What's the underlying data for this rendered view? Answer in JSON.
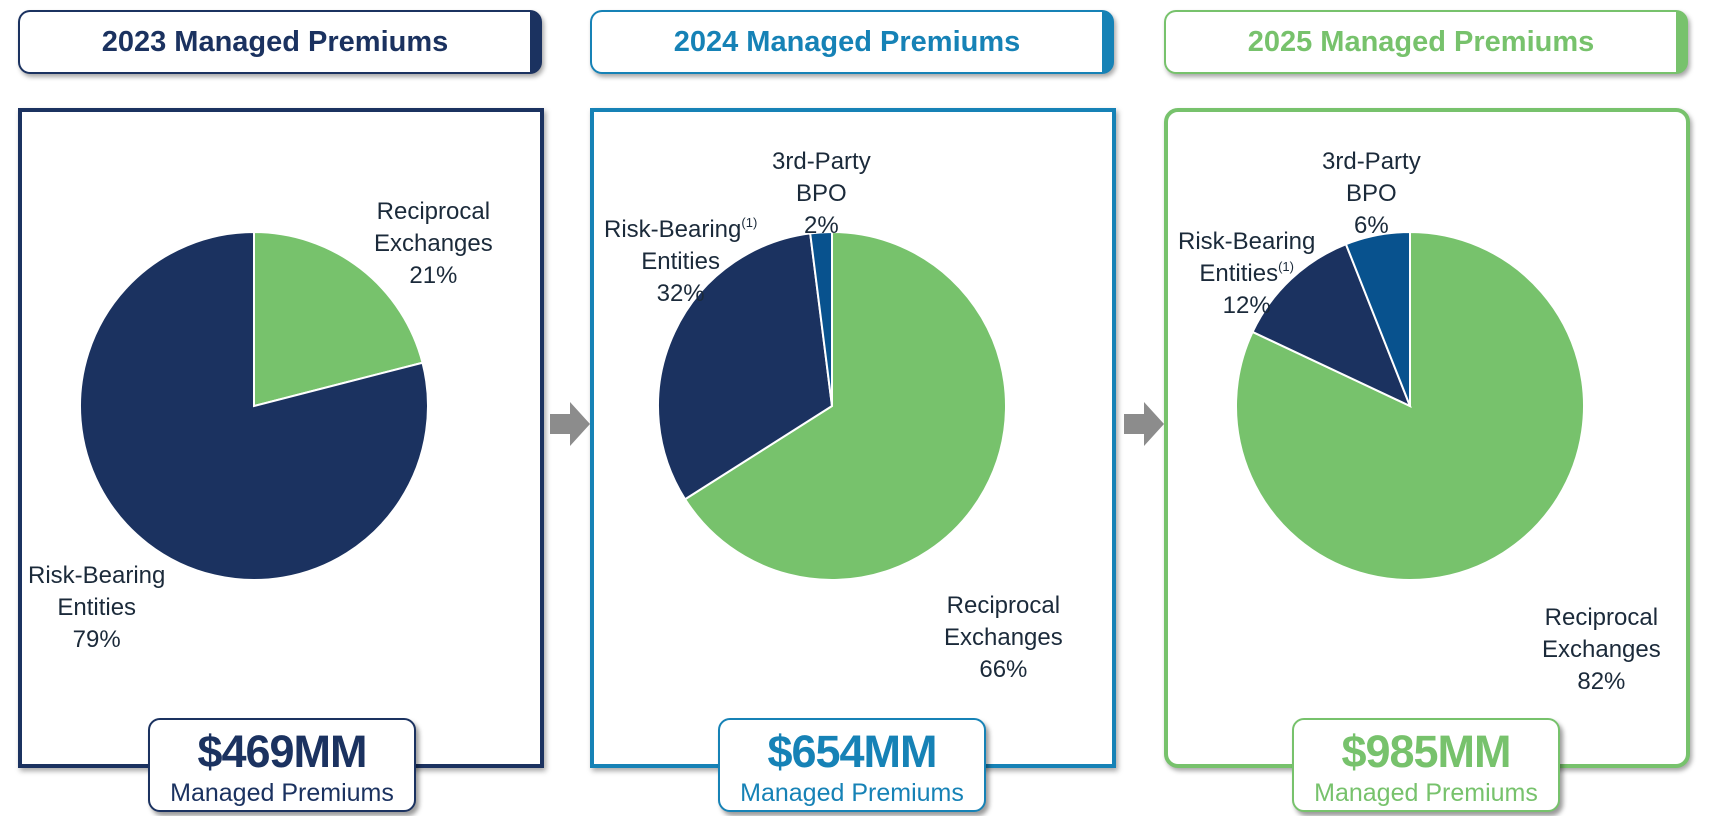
{
  "chart_data": [
    {
      "type": "pie",
      "title": "2023 Managed Premiums",
      "total": "$469MM",
      "total_caption": "Managed Premiums",
      "accent": "#1b3260",
      "slices": [
        {
          "line1": "Reciprocal",
          "line2": "Exchanges",
          "note": "",
          "pct_label": "21%",
          "value": 21,
          "color": "#77c26c"
        },
        {
          "line1": "Risk-Bearing",
          "line2": "Entities",
          "note": "",
          "pct_label": "79%",
          "value": 79,
          "color": "#1b3260"
        }
      ]
    },
    {
      "type": "pie",
      "title": "2024 Managed Premiums",
      "total": "$654MM",
      "total_caption": "Managed Premiums",
      "accent": "#1682b6",
      "slices": [
        {
          "line1": "Reciprocal",
          "line2": "Exchanges",
          "note": "",
          "pct_label": "66%",
          "value": 66,
          "color": "#77c26c"
        },
        {
          "line1": "Risk-Bearing",
          "line2": "Entities",
          "note": "(1)",
          "pct_label": "32%",
          "value": 32,
          "color": "#1b3260"
        },
        {
          "line1": "3rd-Party",
          "line2": "BPO",
          "note": "",
          "pct_label": "2%",
          "value": 2,
          "color": "#08528e"
        }
      ]
    },
    {
      "type": "pie",
      "title": "2025 Managed Premiums",
      "total": "$985MM",
      "total_caption": "Managed Premiums",
      "accent": "#77c26c",
      "slices": [
        {
          "line1": "Reciprocal",
          "line2": "Exchanges",
          "note": "",
          "pct_label": "82%",
          "value": 82,
          "color": "#77c26c"
        },
        {
          "line1": "Risk-Bearing",
          "line2": "Entities",
          "note": "(1)",
          "pct_label": "12%",
          "value": 12,
          "color": "#1b3260"
        },
        {
          "line1": "3rd-Party",
          "line2": "BPO",
          "note": "",
          "pct_label": "6%",
          "value": 6,
          "color": "#08528e"
        }
      ]
    }
  ],
  "arrow_color": "#8c8c8c"
}
